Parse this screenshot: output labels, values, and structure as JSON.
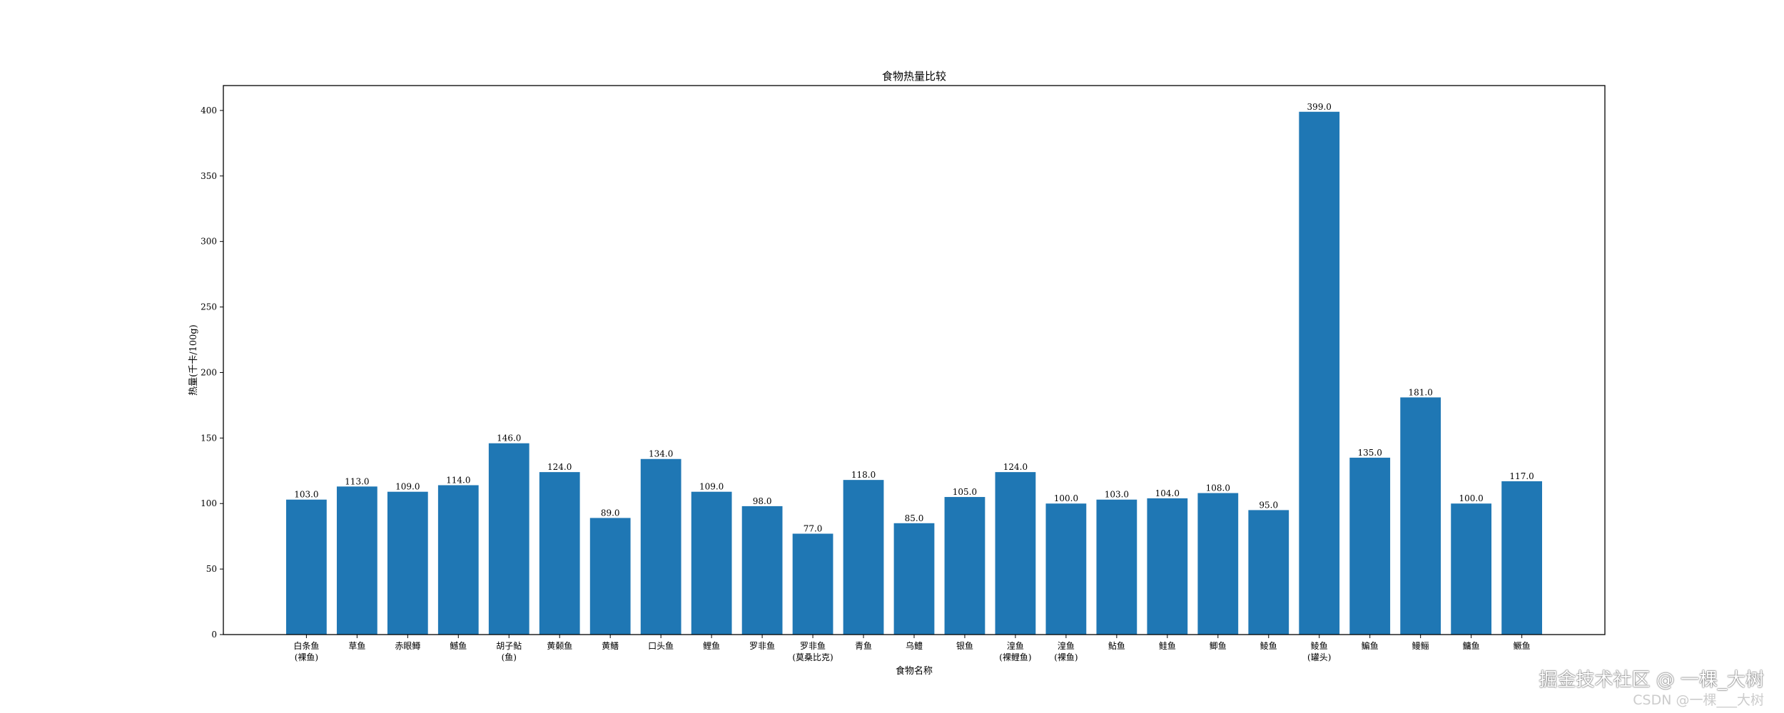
{
  "chart_data": {
    "type": "bar",
    "title": "食物热量比较",
    "xlabel": "食物名称",
    "ylabel": "热量(千卡/100g)",
    "categories": [
      "白条鱼\n(裸鱼)",
      "草鱼",
      "赤眼鳟",
      "鳡鱼",
      "胡子鲇\n(鱼)",
      "黄颡鱼",
      "黄鳝",
      "口头鱼",
      "鲤鱼",
      "罗非鱼",
      "罗非鱼\n(莫桑比克)",
      "青鱼",
      "乌鳢",
      "银鱼",
      "湟鱼\n(裸鲤鱼)",
      "湟鱼\n(裸鱼)",
      "鲇鱼",
      "鲑鱼",
      "鲫鱼",
      "鲮鱼",
      "鲮鱼\n(罐头)",
      "鳊鱼",
      "鳗鲡",
      "鳙鱼",
      "鳜鱼"
    ],
    "values": [
      103.0,
      113.0,
      109.0,
      114.0,
      146.0,
      124.0,
      89.0,
      134.0,
      109.0,
      98.0,
      77.0,
      118.0,
      85.0,
      105.0,
      124.0,
      100.0,
      103.0,
      104.0,
      108.0,
      95.0,
      399.0,
      135.0,
      181.0,
      100.0,
      117.0
    ],
    "ylim": [
      0,
      419
    ],
    "yticks": [
      0,
      50,
      100,
      150,
      200,
      250,
      300,
      350,
      400
    ],
    "bar_color": "#1f77b4",
    "grid": false
  },
  "watermark": {
    "line1": "掘金技术社区 @ 一棵_大树",
    "line2": "CSDN @一棵___大树"
  }
}
